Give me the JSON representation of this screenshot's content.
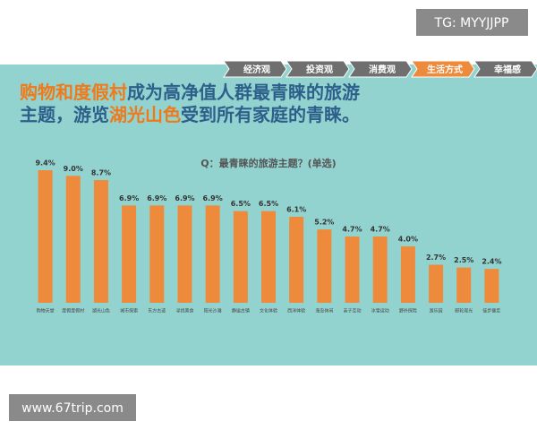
{
  "watermark_label": "TG: MYYJJPP",
  "site_label": "www.67trip.com",
  "nav": [
    "经济观",
    "投资观",
    "消费观",
    "生活方式",
    "幸福感"
  ],
  "nav_active": 3,
  "headline": [
    [
      {
        "text": "购物和度假村",
        "highlight": true
      },
      {
        "text": "成为高净值人群最青睐的旅游",
        "highlight": false
      }
    ],
    [
      {
        "text": "主题，游览",
        "highlight": false
      },
      {
        "text": "湖光山色",
        "highlight": true
      },
      {
        "text": "受到所有家庭的青睐。",
        "highlight": false
      }
    ]
  ],
  "chart_data": {
    "type": "bar",
    "title": "Q：最青睐的旅游主题？(单选)",
    "categories": [
      "购物天堂",
      "度假度假村",
      "湖光山色",
      "城市探索",
      "东方古迹",
      "寻找美食",
      "阳光沙滩",
      "静谧古镇",
      "文化体验",
      "西洋体验",
      "海岛休闲",
      "亲子互动",
      "冰雪运动",
      "野外探险",
      "游乐园",
      "邮轮观光",
      "徒步健走"
    ],
    "values": [
      9.4,
      9.0,
      8.7,
      6.9,
      6.9,
      6.9,
      6.9,
      6.5,
      6.5,
      6.1,
      5.2,
      4.7,
      4.7,
      4.0,
      2.7,
      2.5,
      2.4
    ],
    "value_labels": [
      "9.4%",
      "9.0%",
      "8.7%",
      "6.9%",
      "6.9%",
      "6.9%",
      "6.9%",
      "6.5%",
      "6.5%",
      "6.1%",
      "5.2%",
      "4.7%",
      "4.7%",
      "4.0%",
      "2.7%",
      "2.5%",
      "2.4%"
    ],
    "color": "#ee8a3c"
  }
}
